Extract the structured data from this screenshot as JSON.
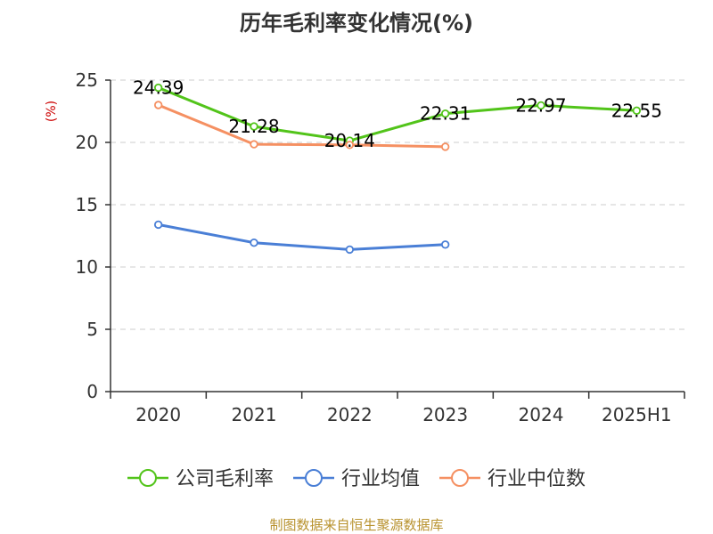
{
  "chart_data": {
    "type": "line",
    "title": "历年毛利率变化情况(%)",
    "unit_label": "(%)",
    "categories": [
      "2020",
      "2021",
      "2022",
      "2023",
      "2024",
      "2025H1"
    ],
    "ylim": [
      0,
      25
    ],
    "yticks": [
      0,
      5,
      10,
      15,
      20,
      25
    ],
    "ytick_labels": [
      "0",
      "5",
      "10",
      "15",
      "20",
      "25"
    ],
    "grid": true,
    "legend_position": "bottom",
    "series": [
      {
        "name": "公司毛利率",
        "color": "#52c41a",
        "values": [
          24.39,
          21.28,
          20.14,
          22.31,
          22.97,
          22.55
        ],
        "data_labels": [
          "24.39",
          "21.28",
          "20.14",
          "22.31",
          "22.97",
          "22.55"
        ]
      },
      {
        "name": "行业均值",
        "color": "#4a7fd6",
        "values": [
          13.4,
          11.95,
          11.4,
          11.8,
          null,
          null
        ]
      },
      {
        "name": "行业中位数",
        "color": "#f59062",
        "values": [
          23.0,
          19.85,
          19.8,
          19.65,
          null,
          null
        ]
      }
    ]
  },
  "source": "制图数据来自恒生聚源数据库"
}
